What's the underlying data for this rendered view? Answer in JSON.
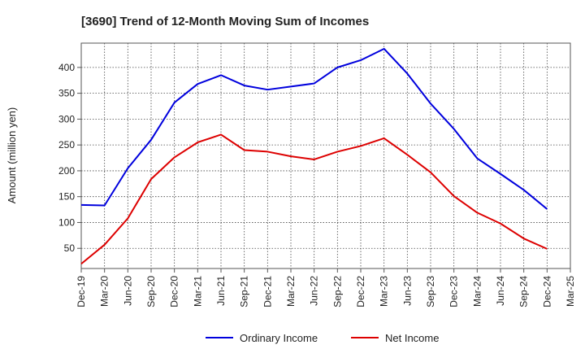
{
  "chart_data": {
    "type": "line",
    "title": "[3690]  Trend of 12-Month Moving Sum of Incomes",
    "xlabel": "",
    "ylabel": "Amount (million yen)",
    "x": [
      "Dec-19",
      "Mar-20",
      "Jun-20",
      "Sep-20",
      "Dec-20",
      "Mar-21",
      "Jun-21",
      "Sep-21",
      "Dec-21",
      "Mar-22",
      "Jun-22",
      "Sep-22",
      "Dec-22",
      "Mar-23",
      "Jun-23",
      "Sep-23",
      "Dec-23",
      "Mar-24",
      "Jun-24",
      "Sep-24",
      "Dec-24",
      "Mar-25"
    ],
    "series": [
      {
        "name": "Ordinary Income",
        "color": "#0000dd",
        "values": [
          134,
          133,
          205,
          260,
          332,
          368,
          385,
          365,
          357,
          363,
          369,
          400,
          414,
          436,
          388,
          330,
          281,
          224,
          194,
          163,
          126,
          null
        ]
      },
      {
        "name": "Net Income",
        "color": "#dd0000",
        "values": [
          20,
          57,
          108,
          184,
          226,
          255,
          270,
          240,
          237,
          228,
          222,
          237,
          248,
          263,
          231,
          197,
          151,
          119,
          98,
          69,
          49,
          null
        ]
      }
    ],
    "yticks": [
      50,
      100,
      150,
      200,
      250,
      300,
      350,
      400
    ],
    "ylim": [
      11,
      447
    ],
    "grid": true,
    "legend_position": "bottom"
  }
}
